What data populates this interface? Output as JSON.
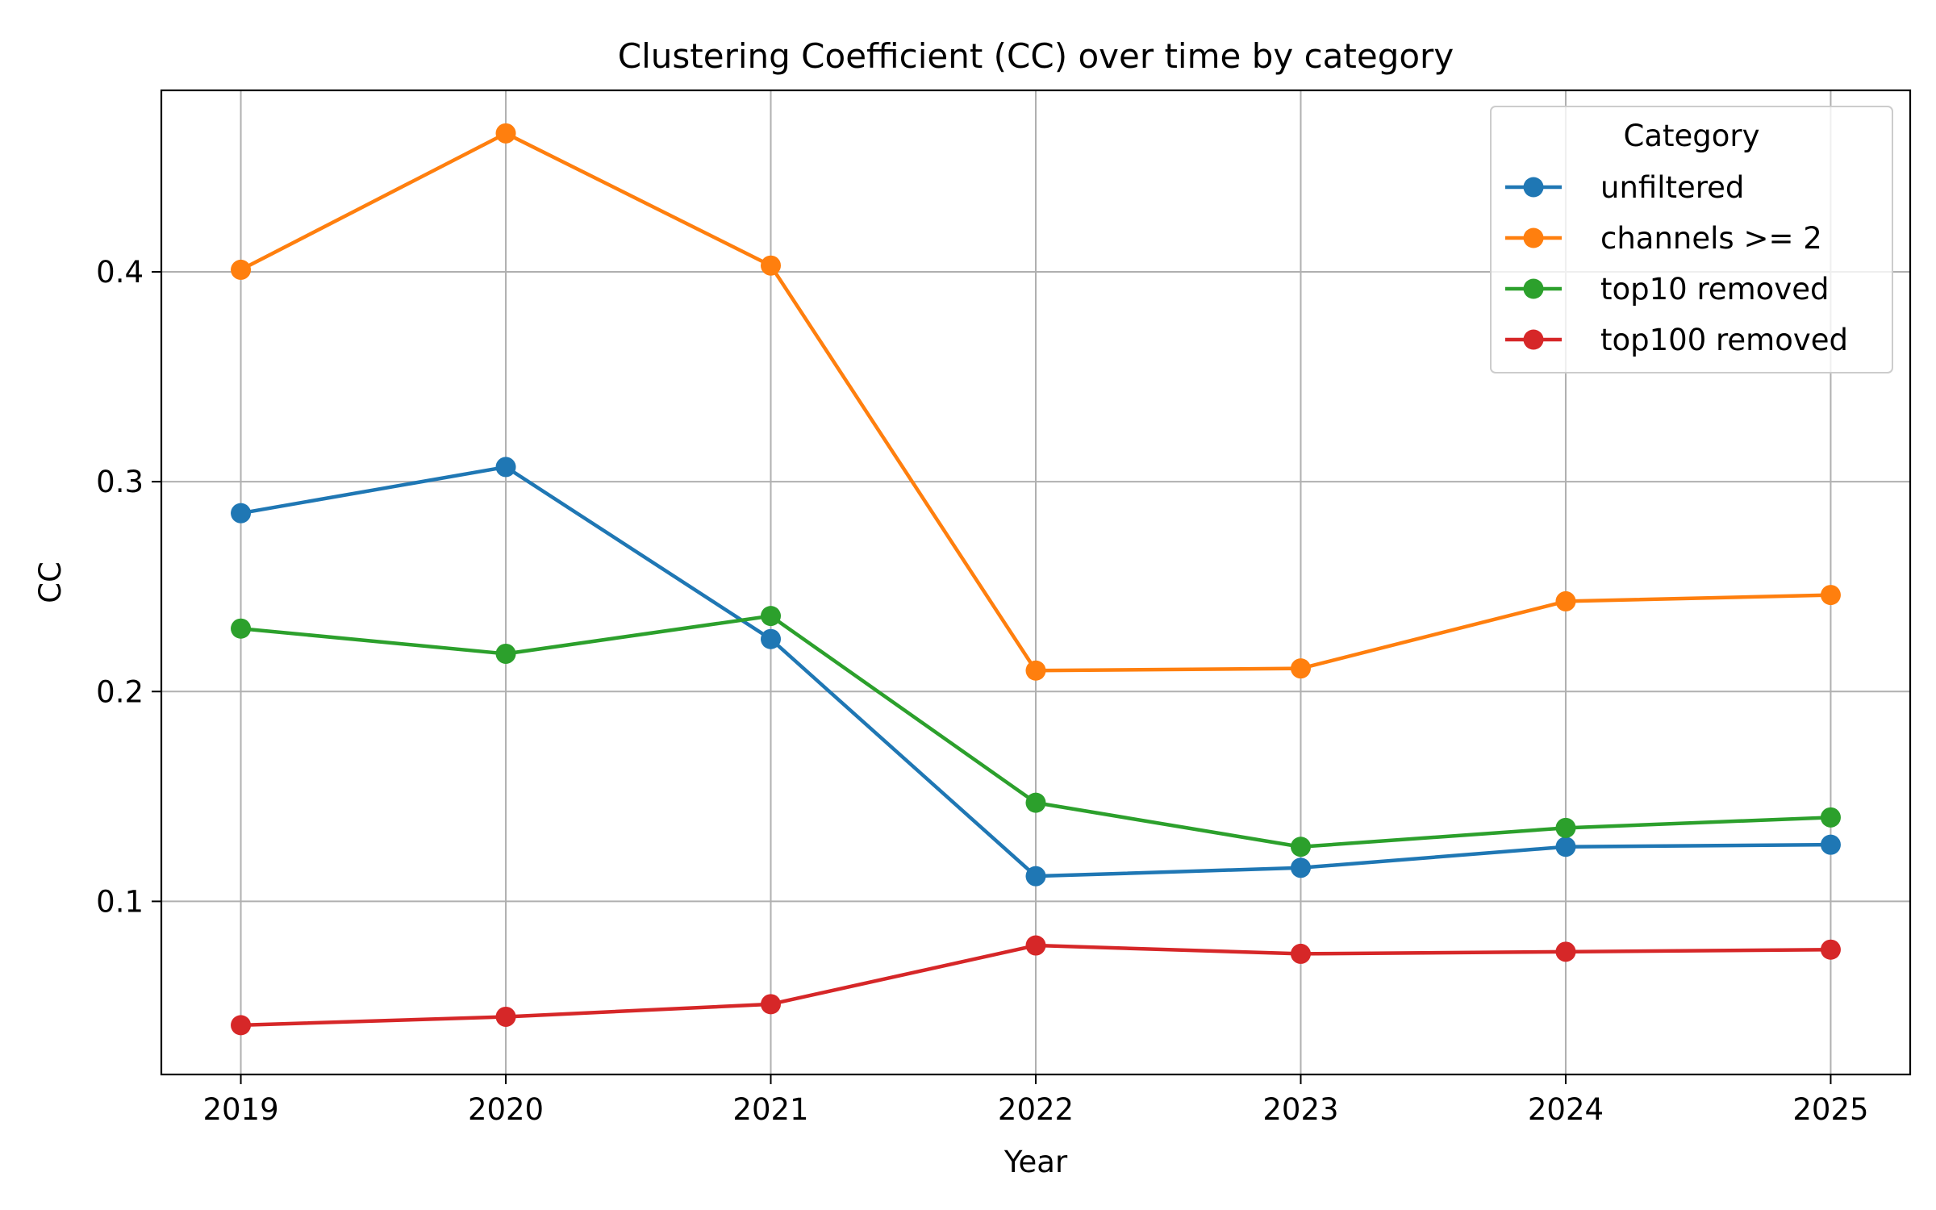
{
  "chart_data": {
    "type": "line",
    "title": "Clustering Coefficient (CC) over time by category",
    "xlabel": "Year",
    "ylabel": "CC",
    "x": [
      2019,
      2020,
      2021,
      2022,
      2023,
      2024,
      2025
    ],
    "xlim": [
      2018.7,
      2025.3
    ],
    "ylim": [
      0.0175,
      0.4865
    ],
    "yticks": [
      0.1,
      0.2,
      0.3,
      0.4
    ],
    "ytick_labels": [
      "0.1",
      "0.2",
      "0.3",
      "0.4"
    ],
    "grid": true,
    "legend": {
      "title": "Category",
      "placement": "top-right"
    },
    "series": [
      {
        "name": "unfiltered",
        "color": "#1f77b4",
        "values": [
          0.285,
          0.307,
          0.225,
          0.112,
          0.116,
          0.126,
          0.127
        ]
      },
      {
        "name": "channels >= 2",
        "color": "#ff7f0e",
        "values": [
          0.401,
          0.466,
          0.403,
          0.21,
          0.211,
          0.243,
          0.246
        ]
      },
      {
        "name": "top10 removed",
        "color": "#2ca02c",
        "values": [
          0.23,
          0.218,
          0.236,
          0.147,
          0.126,
          0.135,
          0.14
        ]
      },
      {
        "name": "top100 removed",
        "color": "#d62728",
        "values": [
          0.041,
          0.045,
          0.051,
          0.079,
          0.075,
          0.076,
          0.077
        ]
      }
    ]
  }
}
